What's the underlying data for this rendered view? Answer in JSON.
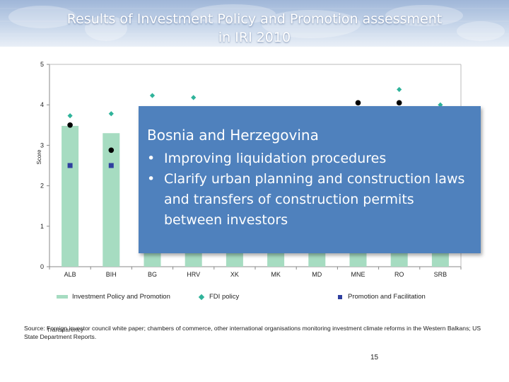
{
  "slide": {
    "title_line1": "Results of Investment Policy and Promotion assessment",
    "title_line2": "in IRI 2010",
    "page_number": "15",
    "source_text": "Source: Foreign investor council white paper; chambers of commerce, other international organisations monitoring investment climate reforms in the Western Balkans; US State Department Reports.",
    "overlapped_text": "Transparency",
    "colors": {
      "banner": "#b9cbe6",
      "bar": "#a6dcc1",
      "fdi_marker": "#2fb39a",
      "promotion_marker": "#2f3f9f",
      "black_marker": "#000000",
      "callout_bg": "#4f81bd"
    }
  },
  "callout": {
    "heading": "Bosnia and Herzegovina",
    "bullet_glyph": "•",
    "bullets": [
      "Improving liquidation procedures",
      "Clarify urban planning and construction laws and transfers of construction permits between investors"
    ]
  },
  "chart_data": {
    "type": "bar",
    "categories": [
      "ALB",
      "BIH",
      "BG",
      "HRV",
      "XK",
      "MK",
      "MD",
      "MNE",
      "RO",
      "SRB"
    ],
    "ylabel": "Score",
    "ylim": [
      0,
      5
    ],
    "yticks": [
      0,
      1,
      2,
      3,
      4,
      5
    ],
    "grid": false,
    "legend_position": "bottom",
    "series": [
      {
        "name": "Investment Policy and Promotion",
        "kind": "bar",
        "values": [
          3.48,
          3.3,
          null,
          null,
          null,
          null,
          null,
          null,
          null,
          null
        ]
      },
      {
        "name": "FDI policy",
        "kind": "diamond",
        "values": [
          3.73,
          3.78,
          4.23,
          4.18,
          null,
          null,
          null,
          null,
          4.38,
          4.0
        ]
      },
      {
        "name": "Promotion and Facilitation",
        "kind": "square",
        "values": [
          2.5,
          2.5,
          null,
          null,
          null,
          null,
          null,
          null,
          null,
          null
        ]
      },
      {
        "name": "",
        "kind": "dot",
        "values": [
          3.5,
          2.88,
          null,
          null,
          null,
          null,
          null,
          4.05,
          4.05,
          null
        ]
      }
    ],
    "hidden_bar_bottoms": {
      "BG": 0.5,
      "HRV": 0.5,
      "XK": 0.5,
      "MK": 0.5,
      "MD": 0.5,
      "MNE": 0.5,
      "RO": 0.5,
      "SRB": 0.5
    }
  }
}
